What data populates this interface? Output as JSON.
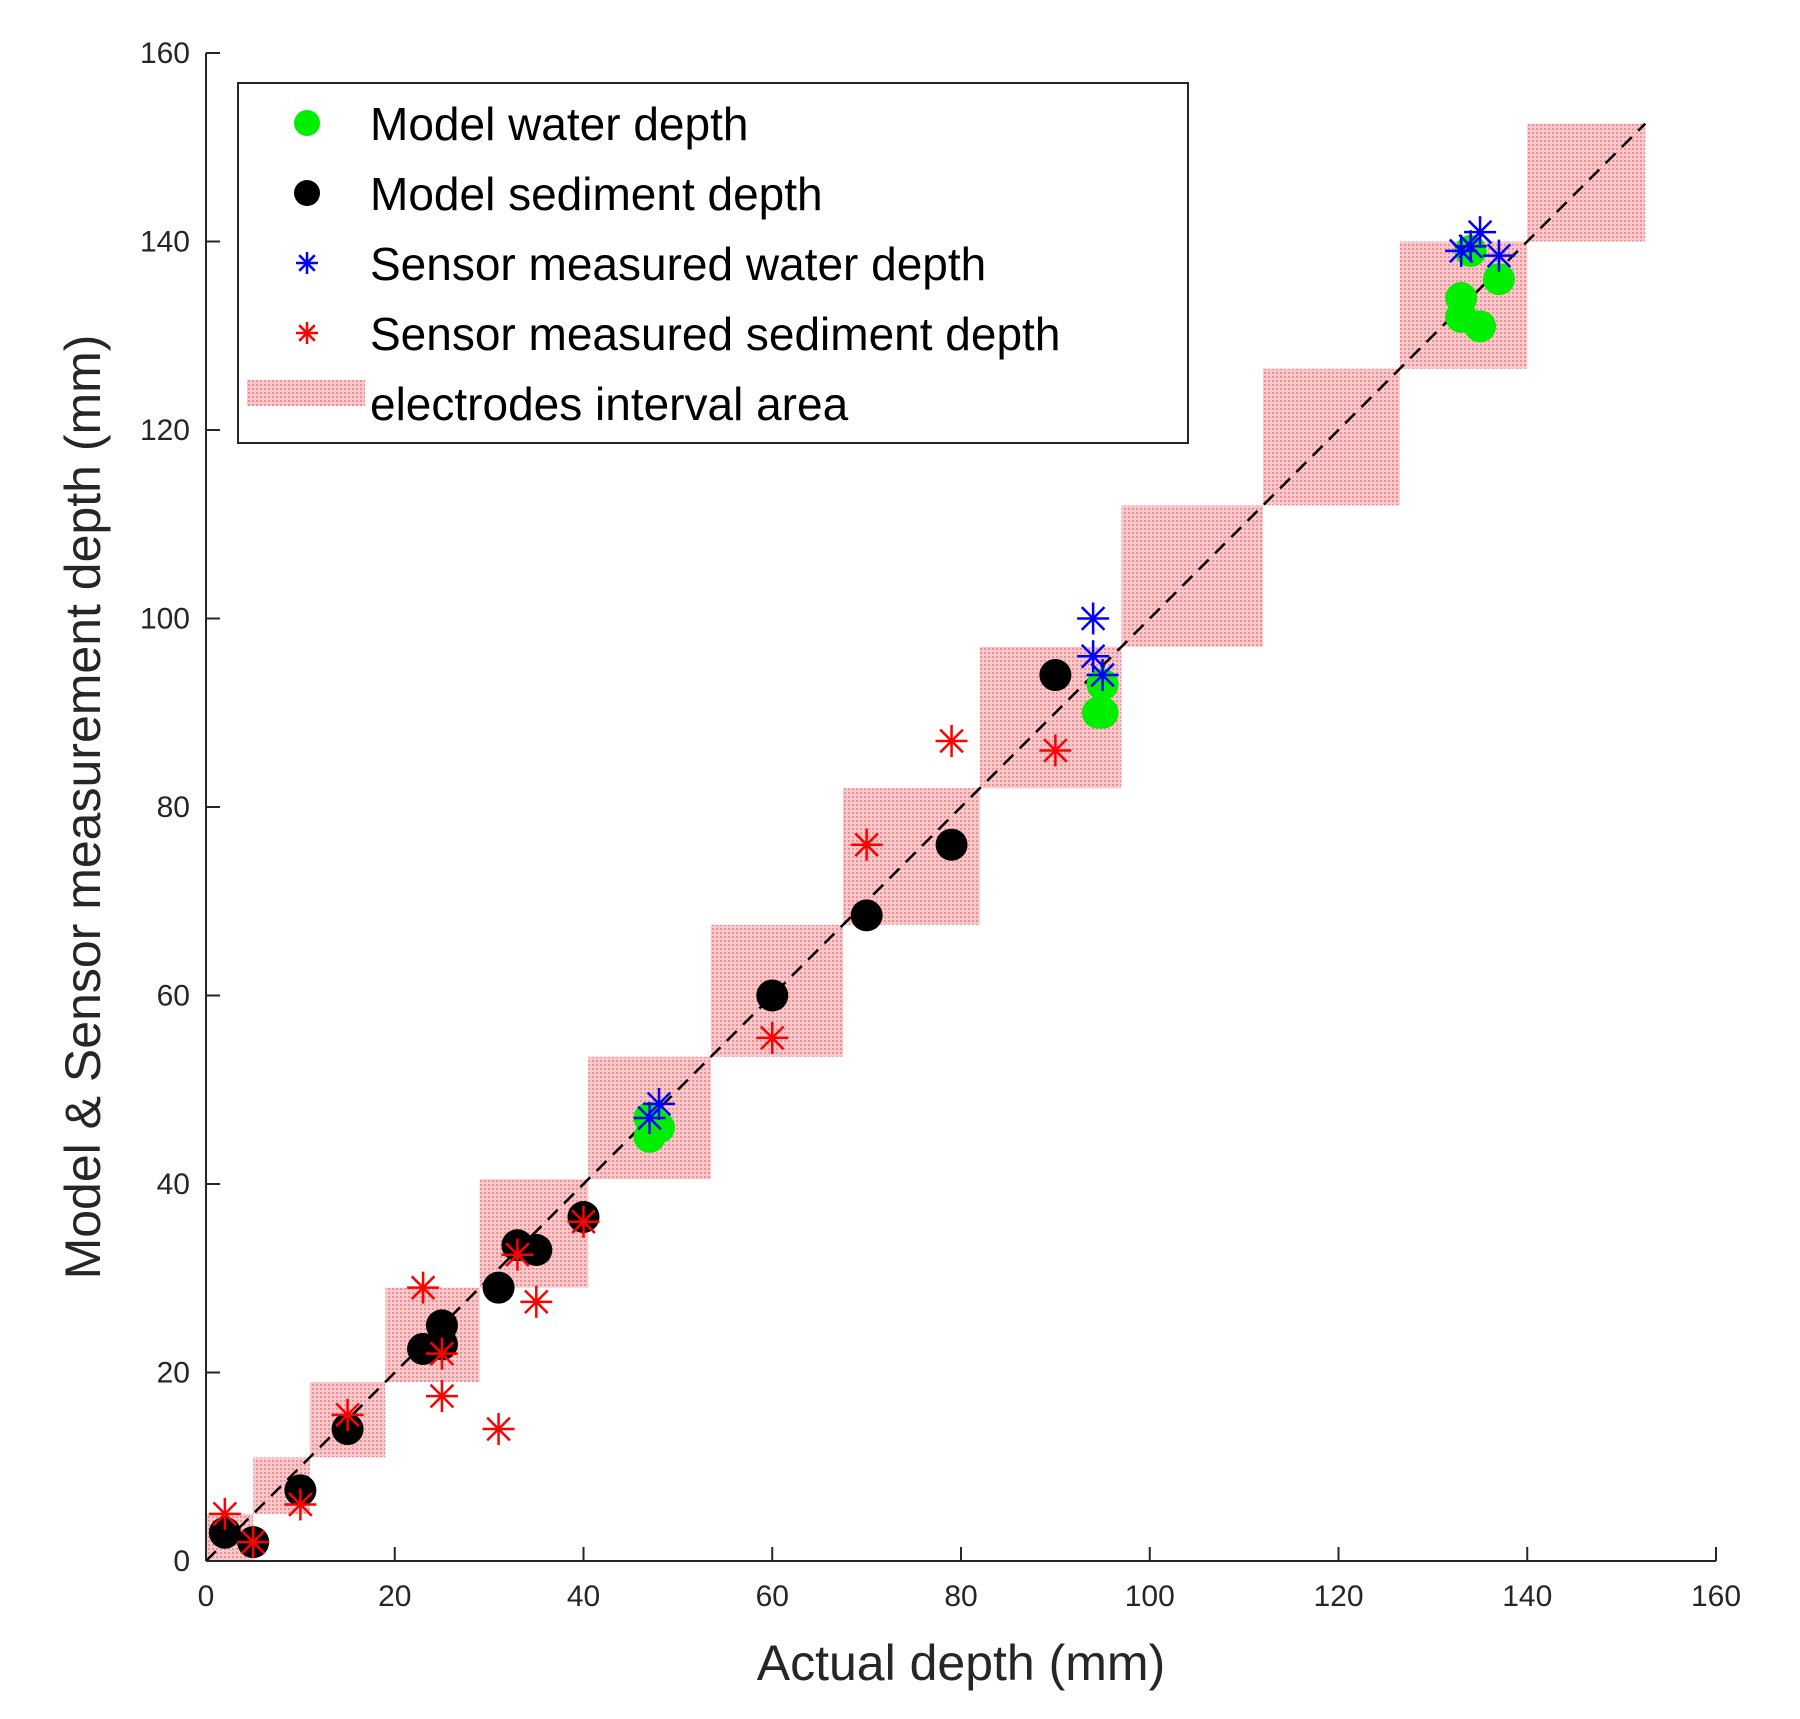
{
  "chart_data": {
    "type": "scatter",
    "title": "",
    "xlabel": "Actual depth (mm)",
    "ylabel": "Model & Sensor measurement depth (mm)",
    "xlim": [
      0,
      160
    ],
    "ylim": [
      0,
      160
    ],
    "xticks": [
      0,
      20,
      40,
      60,
      80,
      100,
      120,
      140,
      160
    ],
    "yticks": [
      0,
      20,
      40,
      60,
      80,
      100,
      120,
      140,
      160
    ],
    "grid": false,
    "legend_position": "top-left",
    "reference_line": {
      "style": "dashed",
      "color": "#000000",
      "from": [
        0,
        0
      ],
      "to": [
        152.5,
        152.5
      ]
    },
    "electrode_areas": [
      {
        "x": [
          0,
          5
        ],
        "y": [
          0,
          5
        ]
      },
      {
        "x": [
          5,
          11
        ],
        "y": [
          5,
          11
        ]
      },
      {
        "x": [
          11,
          19
        ],
        "y": [
          11,
          19
        ]
      },
      {
        "x": [
          19,
          29
        ],
        "y": [
          19,
          29
        ]
      },
      {
        "x": [
          29,
          40.5
        ],
        "y": [
          29,
          40.5
        ]
      },
      {
        "x": [
          40.5,
          53.5
        ],
        "y": [
          40.5,
          53.5
        ]
      },
      {
        "x": [
          53.5,
          67.5
        ],
        "y": [
          53.5,
          67.5
        ]
      },
      {
        "x": [
          67.5,
          82
        ],
        "y": [
          67.5,
          82
        ]
      },
      {
        "x": [
          82,
          97
        ],
        "y": [
          82,
          97
        ]
      },
      {
        "x": [
          97,
          112
        ],
        "y": [
          97,
          112
        ]
      },
      {
        "x": [
          112,
          126.5
        ],
        "y": [
          112,
          126.5
        ]
      },
      {
        "x": [
          126.5,
          140
        ],
        "y": [
          126.5,
          140
        ]
      },
      {
        "x": [
          140,
          152.5
        ],
        "y": [
          140,
          152.5
        ]
      }
    ],
    "series": [
      {
        "name": "Model  water depth",
        "marker": "circle",
        "color": "#00ee00",
        "points": [
          [
            47,
            45
          ],
          [
            47,
            47
          ],
          [
            48,
            46
          ],
          [
            94.5,
            90
          ],
          [
            95,
            90
          ],
          [
            95,
            93
          ],
          [
            133,
            134
          ],
          [
            133,
            132
          ],
          [
            135,
            131
          ],
          [
            137,
            136
          ],
          [
            134,
            139
          ]
        ]
      },
      {
        "name": "Model sediment depth",
        "marker": "circle",
        "color": "#000000",
        "points": [
          [
            2,
            3
          ],
          [
            5,
            2
          ],
          [
            10,
            7.5
          ],
          [
            15,
            14
          ],
          [
            23,
            22.5
          ],
          [
            25,
            25
          ],
          [
            25,
            23
          ],
          [
            31,
            29
          ],
          [
            33,
            33.5
          ],
          [
            35,
            33
          ],
          [
            40,
            36.5
          ],
          [
            60,
            60
          ],
          [
            70,
            68.5
          ],
          [
            79,
            76
          ],
          [
            90,
            94
          ]
        ]
      },
      {
        "name": "Sensor measured water depth",
        "marker": "asterisk",
        "color": "#0000ff",
        "points": [
          [
            47,
            47
          ],
          [
            48,
            48.5
          ],
          [
            94,
            100
          ],
          [
            94,
            96
          ],
          [
            95,
            94
          ],
          [
            133,
            139
          ],
          [
            134,
            139.5
          ],
          [
            135,
            141
          ],
          [
            137,
            138.5
          ]
        ]
      },
      {
        "name": "Sensor measured sediment depth",
        "marker": "asterisk",
        "color": "#ff0000",
        "points": [
          [
            2,
            5
          ],
          [
            5,
            2
          ],
          [
            10,
            6
          ],
          [
            15,
            15.5
          ],
          [
            23,
            29
          ],
          [
            25,
            22
          ],
          [
            25,
            17.5
          ],
          [
            31,
            14
          ],
          [
            33,
            32.5
          ],
          [
            35,
            27.5
          ],
          [
            40,
            36
          ],
          [
            60,
            55.5
          ],
          [
            70,
            76
          ],
          [
            79,
            87
          ],
          [
            90,
            86
          ]
        ]
      }
    ],
    "legend": [
      {
        "label": "Model  water depth",
        "marker": "circle",
        "color": "#00ee00"
      },
      {
        "label": "Model sediment depth",
        "marker": "circle",
        "color": "#000000"
      },
      {
        "label": "Sensor measured water depth",
        "marker": "asterisk",
        "color": "#0000ff"
      },
      {
        "label": "Sensor measured sediment depth",
        "marker": "asterisk",
        "color": "#ff0000"
      },
      {
        "label": "electrodes interval area",
        "marker": "patch",
        "color": "#f4b6b8"
      }
    ]
  }
}
